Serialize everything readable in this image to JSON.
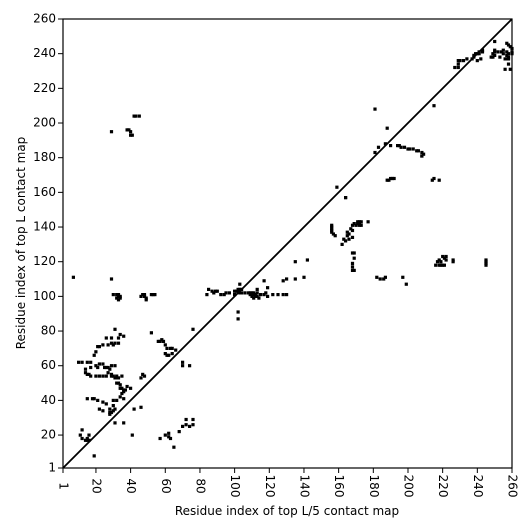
{
  "chart_data": {
    "type": "scatter",
    "title": "",
    "xlabel": "Residue index of top L/5 contact map",
    "ylabel": "Residue index of top L contact map",
    "xlim": [
      1,
      260
    ],
    "ylim": [
      1,
      260
    ],
    "x_ticks": [
      1,
      20,
      40,
      60,
      80,
      100,
      120,
      140,
      160,
      180,
      200,
      220,
      240,
      260
    ],
    "y_ticks": [
      1,
      20,
      40,
      60,
      80,
      100,
      120,
      140,
      160,
      180,
      200,
      220,
      240,
      260
    ],
    "grid": false,
    "colors": {
      "points": "#000000",
      "diagonal": "#000000",
      "background": "#ffffff"
    },
    "diagonal": [
      [
        1,
        1
      ],
      [
        260,
        260
      ]
    ],
    "upper_points": [
      [
        109,
        101
      ],
      [
        110,
        101
      ],
      [
        111,
        101
      ],
      [
        112,
        101
      ],
      [
        109,
        102
      ],
      [
        110,
        102
      ],
      [
        111,
        102
      ],
      [
        110,
        100
      ],
      [
        112,
        100
      ],
      [
        113,
        100
      ],
      [
        111,
        99
      ],
      [
        114,
        99
      ],
      [
        100,
        103
      ],
      [
        101,
        103
      ],
      [
        102,
        103
      ],
      [
        103,
        102
      ],
      [
        104,
        102
      ],
      [
        103,
        104
      ],
      [
        102,
        104
      ],
      [
        104,
        104
      ],
      [
        106,
        102
      ],
      [
        108,
        102
      ],
      [
        113,
        102
      ],
      [
        118,
        102
      ],
      [
        115,
        101
      ],
      [
        117,
        101
      ],
      [
        103,
        107
      ],
      [
        119,
        100
      ],
      [
        122,
        101
      ],
      [
        125,
        101
      ],
      [
        128,
        101
      ],
      [
        130,
        101
      ],
      [
        113,
        104
      ],
      [
        119,
        105
      ],
      [
        128,
        109
      ],
      [
        130,
        110
      ],
      [
        135,
        110
      ],
      [
        140,
        111
      ],
      [
        135,
        120
      ],
      [
        142,
        121
      ],
      [
        162,
        130
      ],
      [
        163,
        133
      ],
      [
        165,
        135
      ],
      [
        166,
        136
      ],
      [
        165,
        137
      ],
      [
        167,
        139
      ],
      [
        168,
        141
      ],
      [
        169,
        142
      ],
      [
        170,
        141
      ],
      [
        171,
        142
      ],
      [
        171,
        143
      ],
      [
        172,
        143
      ],
      [
        173,
        143
      ],
      [
        173,
        141
      ],
      [
        172,
        141
      ],
      [
        172,
        142
      ],
      [
        168,
        138
      ],
      [
        166,
        133
      ],
      [
        164,
        132
      ],
      [
        177,
        143
      ],
      [
        164,
        157
      ],
      [
        158,
        135
      ],
      [
        157,
        136
      ],
      [
        156,
        137
      ],
      [
        156,
        138
      ],
      [
        156,
        139
      ],
      [
        156,
        140
      ],
      [
        156,
        141
      ],
      [
        168,
        115
      ],
      [
        169,
        115
      ],
      [
        168,
        117
      ],
      [
        168,
        119
      ],
      [
        169,
        122
      ],
      [
        168,
        125
      ],
      [
        169,
        125
      ],
      [
        184,
        110
      ],
      [
        186,
        110
      ],
      [
        182,
        111
      ],
      [
        187,
        111
      ],
      [
        199,
        107
      ],
      [
        197,
        111
      ],
      [
        216,
        118
      ],
      [
        218,
        118
      ],
      [
        219,
        118
      ],
      [
        220,
        118
      ],
      [
        221,
        118
      ],
      [
        218,
        121
      ],
      [
        222,
        121
      ],
      [
        221,
        122
      ],
      [
        222,
        123
      ],
      [
        220,
        123
      ],
      [
        217,
        120
      ],
      [
        219,
        120
      ],
      [
        245,
        118
      ],
      [
        245,
        119
      ],
      [
        245,
        120
      ],
      [
        245,
        121
      ],
      [
        226,
        121
      ],
      [
        188,
        167
      ],
      [
        189,
        167
      ],
      [
        190,
        168
      ],
      [
        191,
        168
      ],
      [
        192,
        168
      ],
      [
        214,
        167
      ],
      [
        215,
        168
      ],
      [
        218,
        167
      ],
      [
        164,
        157
      ],
      [
        208,
        181
      ],
      [
        209,
        182
      ],
      [
        208,
        183
      ],
      [
        206,
        184
      ],
      [
        205,
        184
      ],
      [
        203,
        185
      ],
      [
        201,
        185
      ],
      [
        200,
        185
      ],
      [
        198,
        186
      ],
      [
        196,
        186
      ],
      [
        195,
        187
      ],
      [
        194,
        187
      ],
      [
        190,
        187
      ],
      [
        187,
        188
      ],
      [
        183,
        186
      ],
      [
        181,
        183
      ],
      [
        188,
        197
      ],
      [
        181,
        208
      ],
      [
        215,
        210
      ],
      [
        227,
        232
      ],
      [
        229,
        232
      ],
      [
        229,
        234
      ],
      [
        229,
        236
      ],
      [
        230,
        236
      ],
      [
        232,
        236
      ],
      [
        234,
        237
      ],
      [
        237,
        237
      ],
      [
        240,
        236
      ],
      [
        242,
        237
      ],
      [
        238,
        238
      ],
      [
        238,
        239
      ],
      [
        239,
        240
      ],
      [
        240,
        240
      ],
      [
        241,
        240
      ],
      [
        241,
        241
      ],
      [
        243,
        241
      ],
      [
        243,
        242
      ],
      [
        248,
        238
      ],
      [
        249,
        238
      ],
      [
        250,
        239
      ],
      [
        249,
        240
      ],
      [
        250,
        241
      ],
      [
        250,
        242
      ],
      [
        252,
        241
      ],
      [
        255,
        242
      ],
      [
        255,
        240
      ],
      [
        253,
        238
      ],
      [
        256,
        231
      ],
      [
        258,
        234
      ],
      [
        259,
        231
      ],
      [
        258,
        237
      ],
      [
        256,
        237
      ],
      [
        257,
        237
      ],
      [
        258,
        238
      ],
      [
        257,
        239
      ],
      [
        258,
        240
      ],
      [
        257,
        241
      ],
      [
        260,
        240
      ],
      [
        260,
        241
      ],
      [
        260,
        243
      ],
      [
        259,
        244
      ],
      [
        258,
        245
      ],
      [
        257,
        246
      ],
      [
        250,
        247
      ],
      [
        254,
        241
      ]
    ],
    "lower_points": [
      [
        7,
        111
      ],
      [
        10,
        62
      ],
      [
        12,
        62
      ],
      [
        15,
        62
      ],
      [
        17,
        62
      ],
      [
        17,
        59
      ],
      [
        20,
        60
      ],
      [
        22,
        61
      ],
      [
        24,
        61
      ],
      [
        26,
        59
      ],
      [
        27,
        56
      ],
      [
        28,
        58
      ],
      [
        29,
        55
      ],
      [
        30,
        54
      ],
      [
        31,
        53
      ],
      [
        32,
        53
      ],
      [
        33,
        53
      ],
      [
        14,
        58
      ],
      [
        14,
        56
      ],
      [
        15,
        55
      ],
      [
        16,
        55
      ],
      [
        17,
        54
      ],
      [
        20,
        54
      ],
      [
        22,
        54
      ],
      [
        24,
        54
      ],
      [
        26,
        54
      ],
      [
        29,
        54
      ],
      [
        32,
        54
      ],
      [
        35,
        54
      ],
      [
        19,
        66
      ],
      [
        20,
        68
      ],
      [
        21,
        71
      ],
      [
        22,
        71
      ],
      [
        24,
        72
      ],
      [
        27,
        72
      ],
      [
        29,
        73
      ],
      [
        31,
        73
      ],
      [
        33,
        73
      ],
      [
        21,
        59
      ],
      [
        25,
        59
      ],
      [
        27,
        59
      ],
      [
        29,
        60
      ],
      [
        31,
        60
      ],
      [
        26,
        76
      ],
      [
        29,
        76
      ],
      [
        31,
        81
      ],
      [
        33,
        76
      ],
      [
        34,
        78
      ],
      [
        36,
        77
      ],
      [
        30,
        72
      ],
      [
        30,
        101
      ],
      [
        32,
        101
      ],
      [
        33,
        101
      ],
      [
        33,
        100
      ],
      [
        34,
        100
      ],
      [
        32,
        99
      ],
      [
        34,
        99
      ],
      [
        33,
        98
      ],
      [
        29,
        110
      ],
      [
        38,
        196
      ],
      [
        39,
        196
      ],
      [
        40,
        195
      ],
      [
        40,
        193
      ],
      [
        41,
        193
      ],
      [
        42,
        204
      ],
      [
        43,
        204
      ],
      [
        45,
        204
      ],
      [
        29,
        195
      ],
      [
        46,
        100
      ],
      [
        47,
        101
      ],
      [
        48,
        101
      ],
      [
        48,
        100
      ],
      [
        49,
        99
      ],
      [
        49,
        98
      ],
      [
        52,
        101
      ],
      [
        53,
        101
      ],
      [
        54,
        101
      ],
      [
        32,
        50
      ],
      [
        33,
        50
      ],
      [
        34,
        49
      ],
      [
        34,
        47
      ],
      [
        35,
        47
      ],
      [
        36,
        46
      ],
      [
        36,
        45
      ],
      [
        37,
        46
      ],
      [
        38,
        48
      ],
      [
        40,
        47
      ],
      [
        35,
        44
      ],
      [
        34,
        42
      ],
      [
        36,
        41
      ],
      [
        32,
        40
      ],
      [
        30,
        40
      ],
      [
        30,
        37
      ],
      [
        31,
        35
      ],
      [
        30,
        34
      ],
      [
        29,
        33
      ],
      [
        28,
        32
      ],
      [
        15,
        41
      ],
      [
        18,
        41
      ],
      [
        19,
        41
      ],
      [
        21,
        40
      ],
      [
        24,
        39
      ],
      [
        26,
        38
      ],
      [
        24,
        34
      ],
      [
        28,
        33
      ],
      [
        28,
        35
      ],
      [
        22,
        35
      ],
      [
        42,
        35
      ],
      [
        46,
        36
      ],
      [
        41,
        20
      ],
      [
        36,
        27
      ],
      [
        31,
        27
      ],
      [
        12,
        23
      ],
      [
        11,
        20
      ],
      [
        12,
        18
      ],
      [
        14,
        17
      ],
      [
        15,
        17
      ],
      [
        15,
        18
      ],
      [
        16,
        17
      ],
      [
        16,
        20
      ],
      [
        19,
        8
      ],
      [
        46,
        53
      ],
      [
        47,
        55
      ],
      [
        48,
        54
      ],
      [
        52,
        79
      ],
      [
        56,
        74
      ],
      [
        57,
        74
      ],
      [
        58,
        75
      ],
      [
        59,
        74
      ],
      [
        60,
        72
      ],
      [
        61,
        70
      ],
      [
        63,
        70
      ],
      [
        64,
        70
      ],
      [
        60,
        67
      ],
      [
        61,
        66
      ],
      [
        62,
        66
      ],
      [
        64,
        67
      ],
      [
        66,
        69
      ],
      [
        57,
        18
      ],
      [
        60,
        20
      ],
      [
        62,
        21
      ],
      [
        62,
        19
      ],
      [
        63,
        18
      ],
      [
        65,
        13
      ],
      [
        68,
        22
      ],
      [
        70,
        25
      ],
      [
        72,
        29
      ],
      [
        72,
        26
      ],
      [
        74,
        25
      ],
      [
        76,
        26
      ],
      [
        76,
        29
      ],
      [
        70,
        60
      ],
      [
        70,
        62
      ],
      [
        74,
        60
      ],
      [
        76,
        81
      ],
      [
        84,
        101
      ],
      [
        85,
        104
      ],
      [
        87,
        103
      ],
      [
        88,
        102
      ],
      [
        89,
        103
      ],
      [
        90,
        103
      ],
      [
        92,
        101
      ],
      [
        94,
        101
      ],
      [
        95,
        102
      ],
      [
        97,
        102
      ],
      [
        100,
        101
      ],
      [
        102,
        91
      ],
      [
        102,
        87
      ],
      [
        117,
        109
      ],
      [
        159,
        163
      ],
      [
        168,
        134
      ],
      [
        208,
        181
      ],
      [
        226,
        120
      ]
    ]
  }
}
